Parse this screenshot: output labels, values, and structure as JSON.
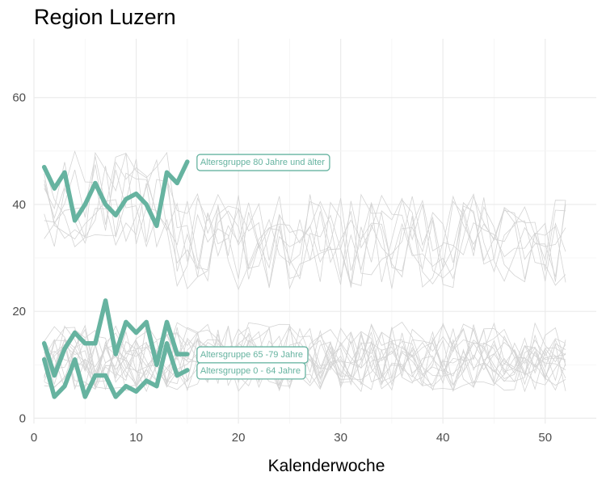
{
  "chart_data": {
    "type": "line",
    "title": "Region Luzern",
    "xlabel": "Kalenderwoche",
    "ylabel": "",
    "xlim": [
      0,
      55
    ],
    "ylim": [
      -1,
      71
    ],
    "x_ticks": [
      0,
      10,
      20,
      30,
      40,
      50
    ],
    "y_ticks": [
      0,
      20,
      40,
      60
    ],
    "grid": true,
    "colors": {
      "highlight": "#66b3a0",
      "background_lines": "#d4d4d4",
      "grid_major": "#ebebeb",
      "grid_minor": "#f4f4f4"
    },
    "highlighted_series": [
      {
        "name": "Altersgruppe 80 Jahre und älter",
        "x": [
          1,
          2,
          3,
          4,
          5,
          6,
          7,
          8,
          9,
          10,
          11,
          12,
          13,
          14,
          15
        ],
        "values": [
          47,
          43,
          46,
          37,
          40,
          44,
          40,
          38,
          41,
          42,
          40,
          36,
          46,
          44,
          48
        ]
      },
      {
        "name": "Altersgruppe 65 -79 Jahre",
        "x": [
          1,
          2,
          3,
          4,
          5,
          6,
          7,
          8,
          9,
          10,
          11,
          12,
          13,
          14,
          15
        ],
        "values": [
          14,
          8,
          13,
          16,
          14,
          14,
          22,
          12,
          18,
          16,
          18,
          10,
          18,
          12,
          12
        ]
      },
      {
        "name": "Altersgruppe 0 - 64 Jahre",
        "x": [
          1,
          2,
          3,
          4,
          5,
          6,
          7,
          8,
          9,
          10,
          11,
          12,
          13,
          14,
          15
        ],
        "values": [
          11,
          4,
          6,
          11,
          4,
          8,
          8,
          4,
          6,
          5,
          7,
          6,
          14,
          8,
          9
        ]
      }
    ]
  }
}
